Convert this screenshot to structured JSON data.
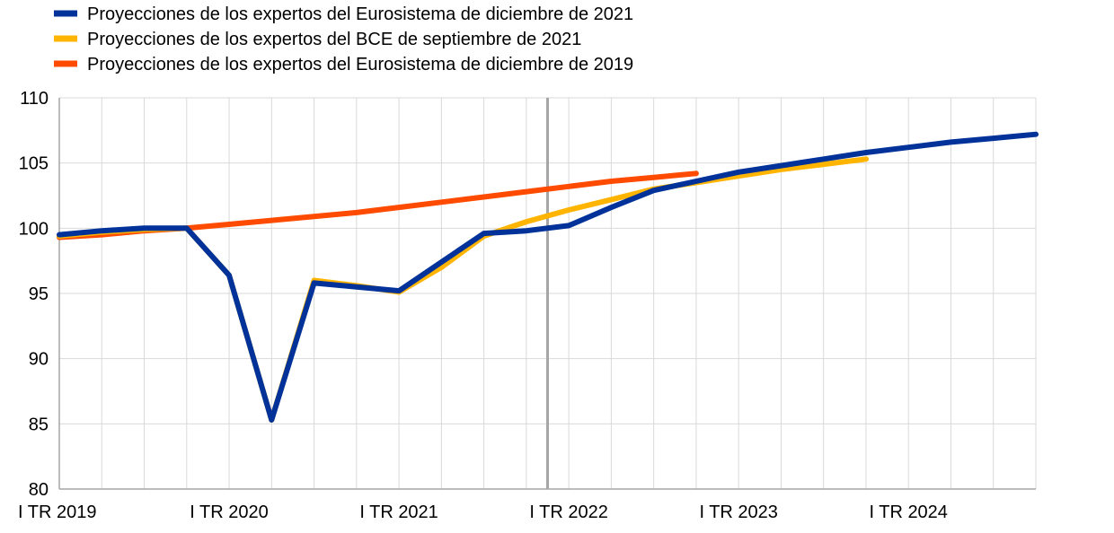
{
  "chart_data": {
    "type": "line",
    "title": "",
    "xlabel": "",
    "ylabel": "",
    "x": [
      "I TR 2019",
      "II TR 2019",
      "III TR 2019",
      "IV TR 2019",
      "I TR 2020",
      "II TR 2020",
      "III TR 2020",
      "IV TR 2020",
      "I TR 2021",
      "II TR 2021",
      "III TR 2021",
      "IV TR 2021",
      "I TR 2022",
      "II TR 2022",
      "III TR 2022",
      "IV TR 2022",
      "I TR 2023",
      "II TR 2023",
      "III TR 2023",
      "IV TR 2023",
      "I TR 2024",
      "II TR 2024",
      "III TR 2024",
      "IV TR 2024"
    ],
    "x_tick_labels": [
      "I TR 2019",
      "I TR 2020",
      "I TR 2021",
      "I TR 2022",
      "I TR 2023",
      "I TR 2024"
    ],
    "ylim": [
      80,
      110
    ],
    "y_ticks": [
      80,
      85,
      90,
      95,
      100,
      105,
      110
    ],
    "grid": true,
    "legend_position": "top-left",
    "projection_marker_after": "IV TR 2021",
    "marker_color": "#a6a6a6",
    "series": [
      {
        "name": "Proyecciones de los expertos del Eurosistema de diciembre de 2021",
        "color": "#003299",
        "values": [
          99.5,
          99.8,
          100.0,
          100.0,
          96.4,
          85.3,
          95.8,
          95.5,
          95.2,
          97.4,
          99.6,
          99.8,
          100.2,
          101.6,
          102.9,
          103.6,
          104.3,
          104.8,
          105.3,
          105.8,
          106.2,
          106.6,
          106.9,
          107.2
        ]
      },
      {
        "name": "Proyecciones de los expertos del BCE de septiembre de 2021",
        "color": "#ffb400",
        "values": [
          99.4,
          99.7,
          99.9,
          100.0,
          96.4,
          85.3,
          96.0,
          95.6,
          95.1,
          97.0,
          99.4,
          100.5,
          101.4,
          102.2,
          103.0,
          103.5,
          104.0,
          104.5,
          104.9,
          105.3,
          null,
          null,
          null,
          null
        ]
      },
      {
        "name": "Proyecciones de los expertos del Eurosistema de diciembre de 2019",
        "color": "#ff4b00",
        "values": [
          99.3,
          99.5,
          99.8,
          100.0,
          100.3,
          100.6,
          100.9,
          101.2,
          101.6,
          102.0,
          102.4,
          102.8,
          103.2,
          103.6,
          103.9,
          104.2,
          null,
          null,
          null,
          null,
          null,
          null,
          null,
          null
        ]
      }
    ]
  }
}
